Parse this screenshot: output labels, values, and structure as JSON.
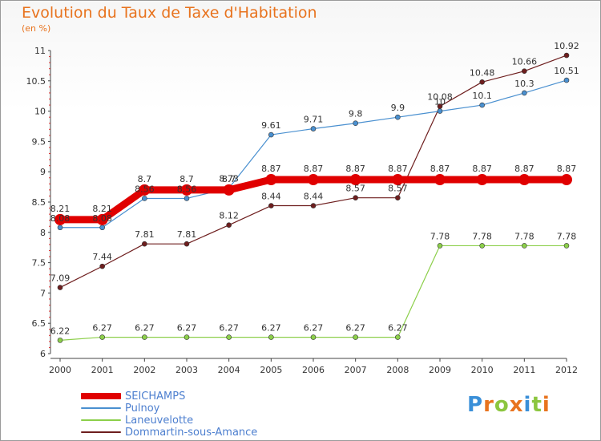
{
  "header": {
    "title": "Evolution du Taux de Taxe d'Habitation",
    "unit": "(en %)"
  },
  "logo": {
    "text": "Proxiti",
    "letters": [
      {
        "ch": "P",
        "color": "#3a8fd8"
      },
      {
        "ch": "r",
        "color": "#e8731e"
      },
      {
        "ch": "o",
        "color": "#8cc63f"
      },
      {
        "ch": "x",
        "color": "#e8731e"
      },
      {
        "ch": "i",
        "color": "#3a8fd8"
      },
      {
        "ch": "t",
        "color": "#8cc63f"
      },
      {
        "ch": "i",
        "color": "#e8731e"
      }
    ]
  },
  "chart_data": {
    "type": "line",
    "title": "Evolution du Taux de Taxe d'Habitation",
    "ylabel": "(en %)",
    "xlabel": "",
    "ylim": [
      6,
      11
    ],
    "yticks": [
      6,
      6.5,
      7,
      7.5,
      8,
      8.5,
      9,
      9.5,
      10,
      10.5,
      11
    ],
    "x": [
      "2000",
      "2001",
      "2002",
      "2003",
      "2004",
      "2005",
      "2006",
      "2007",
      "2008",
      "2009",
      "2010",
      "2011",
      "2012"
    ],
    "grid": false,
    "legend": "bottom-left",
    "series": [
      {
        "name": "SEICHAMPS",
        "color": "#e00000",
        "values": [
          8.21,
          8.21,
          8.7,
          8.7,
          8.7,
          8.87,
          8.87,
          8.87,
          8.87,
          8.87,
          8.87,
          8.87,
          8.87
        ]
      },
      {
        "name": "Pulnoy",
        "color": "#4a90d0",
        "values": [
          8.08,
          8.08,
          8.56,
          8.56,
          8.73,
          9.61,
          9.71,
          9.8,
          9.9,
          10,
          10.1,
          10.3,
          10.51
        ]
      },
      {
        "name": "Laneuvelotte",
        "color": "#8ccf4a",
        "values": [
          6.22,
          6.27,
          6.27,
          6.27,
          6.27,
          6.27,
          6.27,
          6.27,
          6.27,
          7.78,
          7.78,
          7.78,
          7.78
        ]
      },
      {
        "name": "Dommartin-sous-Amance",
        "color": "#6e1e1e",
        "values": [
          7.09,
          7.44,
          7.81,
          7.81,
          8.12,
          8.44,
          8.44,
          8.57,
          8.57,
          10.08,
          10.48,
          10.66,
          10.92
        ]
      }
    ],
    "value_labels": {
      "SEICHAMPS": [
        "8.21",
        "8.21",
        "8.7",
        "8.7",
        "8.7",
        "8.87",
        "8.87",
        "8.87",
        "8.87",
        "8.87",
        "8.87",
        "8.87",
        "8.87"
      ],
      "Pulnoy": [
        "8.08",
        "8.08",
        "8.56",
        "8.56",
        "8.73",
        "9.61",
        "9.71",
        "9.8",
        "9.9",
        "10",
        "10.1",
        "10.3",
        "10.51"
      ],
      "Laneuvelotte": [
        "6.22",
        "6.27",
        "6.27",
        "6.27",
        "6.27",
        "6.27",
        "6.27",
        "6.27",
        "6.27",
        "7.78",
        "7.78",
        "7.78",
        "7.78"
      ],
      "Dommartin-sous-Amance": [
        "7.09",
        "7.44",
        "7.81",
        "7.81",
        "8.12",
        "8.44",
        "8.44",
        "8.57",
        "8.57",
        "10.08",
        "10.48",
        "10.66",
        "10.92"
      ]
    }
  }
}
